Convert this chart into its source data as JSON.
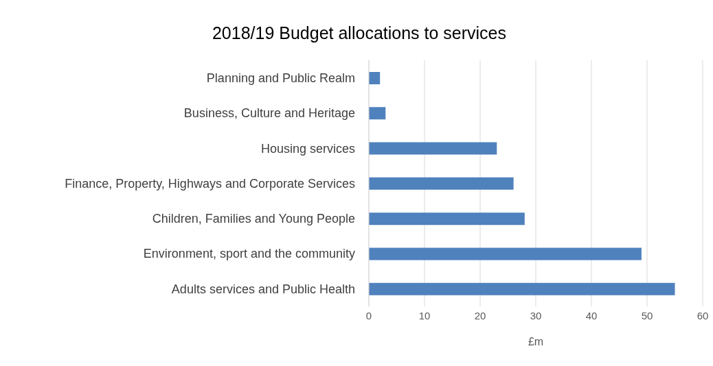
{
  "chart_data": {
    "type": "bar",
    "orientation": "horizontal",
    "title": "2018/19 Budget allocations to services",
    "xlabel": "£m",
    "categories": [
      "Planning and Public Realm",
      "Business, Culture and Heritage",
      "Housing services",
      "Finance, Property, Highways and Corporate Services",
      "Children, Families and Young People",
      "Environment, sport and the community",
      "Adults services and Public Health"
    ],
    "values": [
      2,
      3,
      23,
      26,
      28,
      49,
      55
    ],
    "color": "#4f81bd",
    "xlim": [
      0,
      60
    ],
    "xticks": [
      0,
      10,
      20,
      30,
      40,
      50,
      60
    ],
    "grid": "x"
  }
}
